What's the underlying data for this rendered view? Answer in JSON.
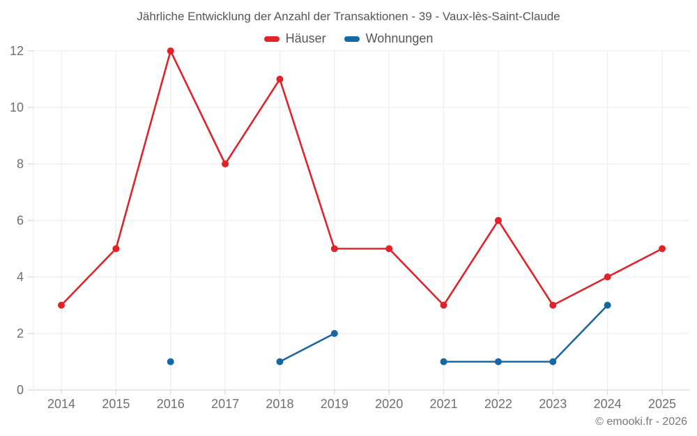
{
  "title": "Jährliche Entwicklung der Anzahl der Transaktionen - 39 - Vaux-lès-Saint-Claude",
  "footer": "© emooki.fr - 2026",
  "legend": {
    "items": [
      {
        "label": "Häuser",
        "color": "#e02329"
      },
      {
        "label": "Wohnungen",
        "color": "#1668a2"
      }
    ]
  },
  "colors": {
    "series_red": "#e02329",
    "series_blue": "#1668a2",
    "gridline": "#ededee",
    "axis_line": "#d9dadc",
    "tick_label": "#6e6f73",
    "title_text": "#55565a"
  },
  "chart_data": {
    "type": "line",
    "x": [
      2014,
      2015,
      2016,
      2017,
      2018,
      2019,
      2020,
      2021,
      2022,
      2023,
      2024,
      2025
    ],
    "series": [
      {
        "name": "Häuser",
        "color": "#e02329",
        "values": [
          3,
          5,
          12,
          8,
          11,
          5,
          5,
          3,
          6,
          3,
          4,
          5
        ]
      },
      {
        "name": "Wohnungen",
        "color": "#1668a2",
        "values": [
          null,
          null,
          1,
          null,
          1,
          2,
          null,
          1,
          1,
          1,
          3,
          null
        ]
      }
    ],
    "title": "Jährliche Entwicklung der Anzahl der Transaktionen - 39 - Vaux-lès-Saint-Claude",
    "xlabel": "",
    "ylabel": "",
    "ylim": [
      0,
      12
    ],
    "yticks": [
      0,
      2,
      4,
      6,
      8,
      10,
      12
    ],
    "grid": true,
    "legend_position": "top"
  }
}
